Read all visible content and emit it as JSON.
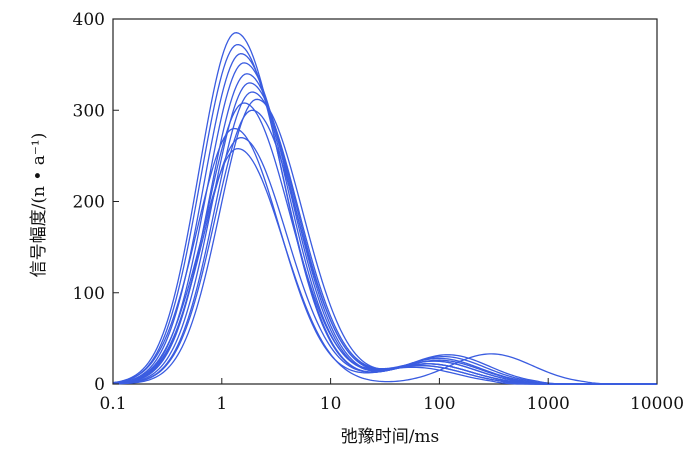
{
  "chart_data": {
    "type": "line",
    "title": "",
    "xlabel": "弛豫时间/ms",
    "ylabel": "信号幅度/(n • a⁻¹)",
    "xscale": "log",
    "xlim": [
      0.1,
      10000
    ],
    "ylim": [
      0,
      400
    ],
    "x_ticks": [
      "0.1",
      "1",
      "10",
      "100",
      "1000",
      "10000"
    ],
    "y_ticks": [
      "0",
      "100",
      "200",
      "300",
      "400"
    ],
    "grid": false,
    "legend": "none",
    "line_color": "#3a5ce0",
    "series": [
      {
        "peak_x": 1.35,
        "peak_y": 385,
        "tail_y": 22,
        "tail_x": 80,
        "end_x": 400
      },
      {
        "peak_x": 1.4,
        "peak_y": 372,
        "tail_y": 25,
        "tail_x": 90,
        "end_x": 450
      },
      {
        "peak_x": 1.5,
        "peak_y": 362,
        "tail_y": 20,
        "tail_x": 70,
        "end_x": 350
      },
      {
        "peak_x": 1.6,
        "peak_y": 352,
        "tail_y": 28,
        "tail_x": 100,
        "end_x": 600
      },
      {
        "peak_x": 1.7,
        "peak_y": 340,
        "tail_y": 30,
        "tail_x": 110,
        "end_x": 700
      },
      {
        "peak_x": 1.8,
        "peak_y": 330,
        "tail_y": 22,
        "tail_x": 80,
        "end_x": 500
      },
      {
        "peak_x": 1.9,
        "peak_y": 320,
        "tail_y": 25,
        "tail_x": 90,
        "end_x": 550
      },
      {
        "peak_x": 2.1,
        "peak_y": 312,
        "tail_y": 32,
        "tail_x": 120,
        "end_x": 800
      },
      {
        "peak_x": 1.6,
        "peak_y": 308,
        "tail_y": 18,
        "tail_x": 60,
        "end_x": 300
      },
      {
        "peak_x": 1.9,
        "peak_y": 300,
        "tail_y": 26,
        "tail_x": 100,
        "end_x": 700
      },
      {
        "peak_x": 1.3,
        "peak_y": 280,
        "tail_y": 20,
        "tail_x": 70,
        "end_x": 400
      },
      {
        "peak_x": 1.5,
        "peak_y": 270,
        "tail_y": 22,
        "tail_x": 80,
        "end_x": 450
      },
      {
        "peak_x": 1.4,
        "peak_y": 258,
        "tail_y": 33,
        "tail_x": 300,
        "end_x": 2200
      }
    ]
  }
}
